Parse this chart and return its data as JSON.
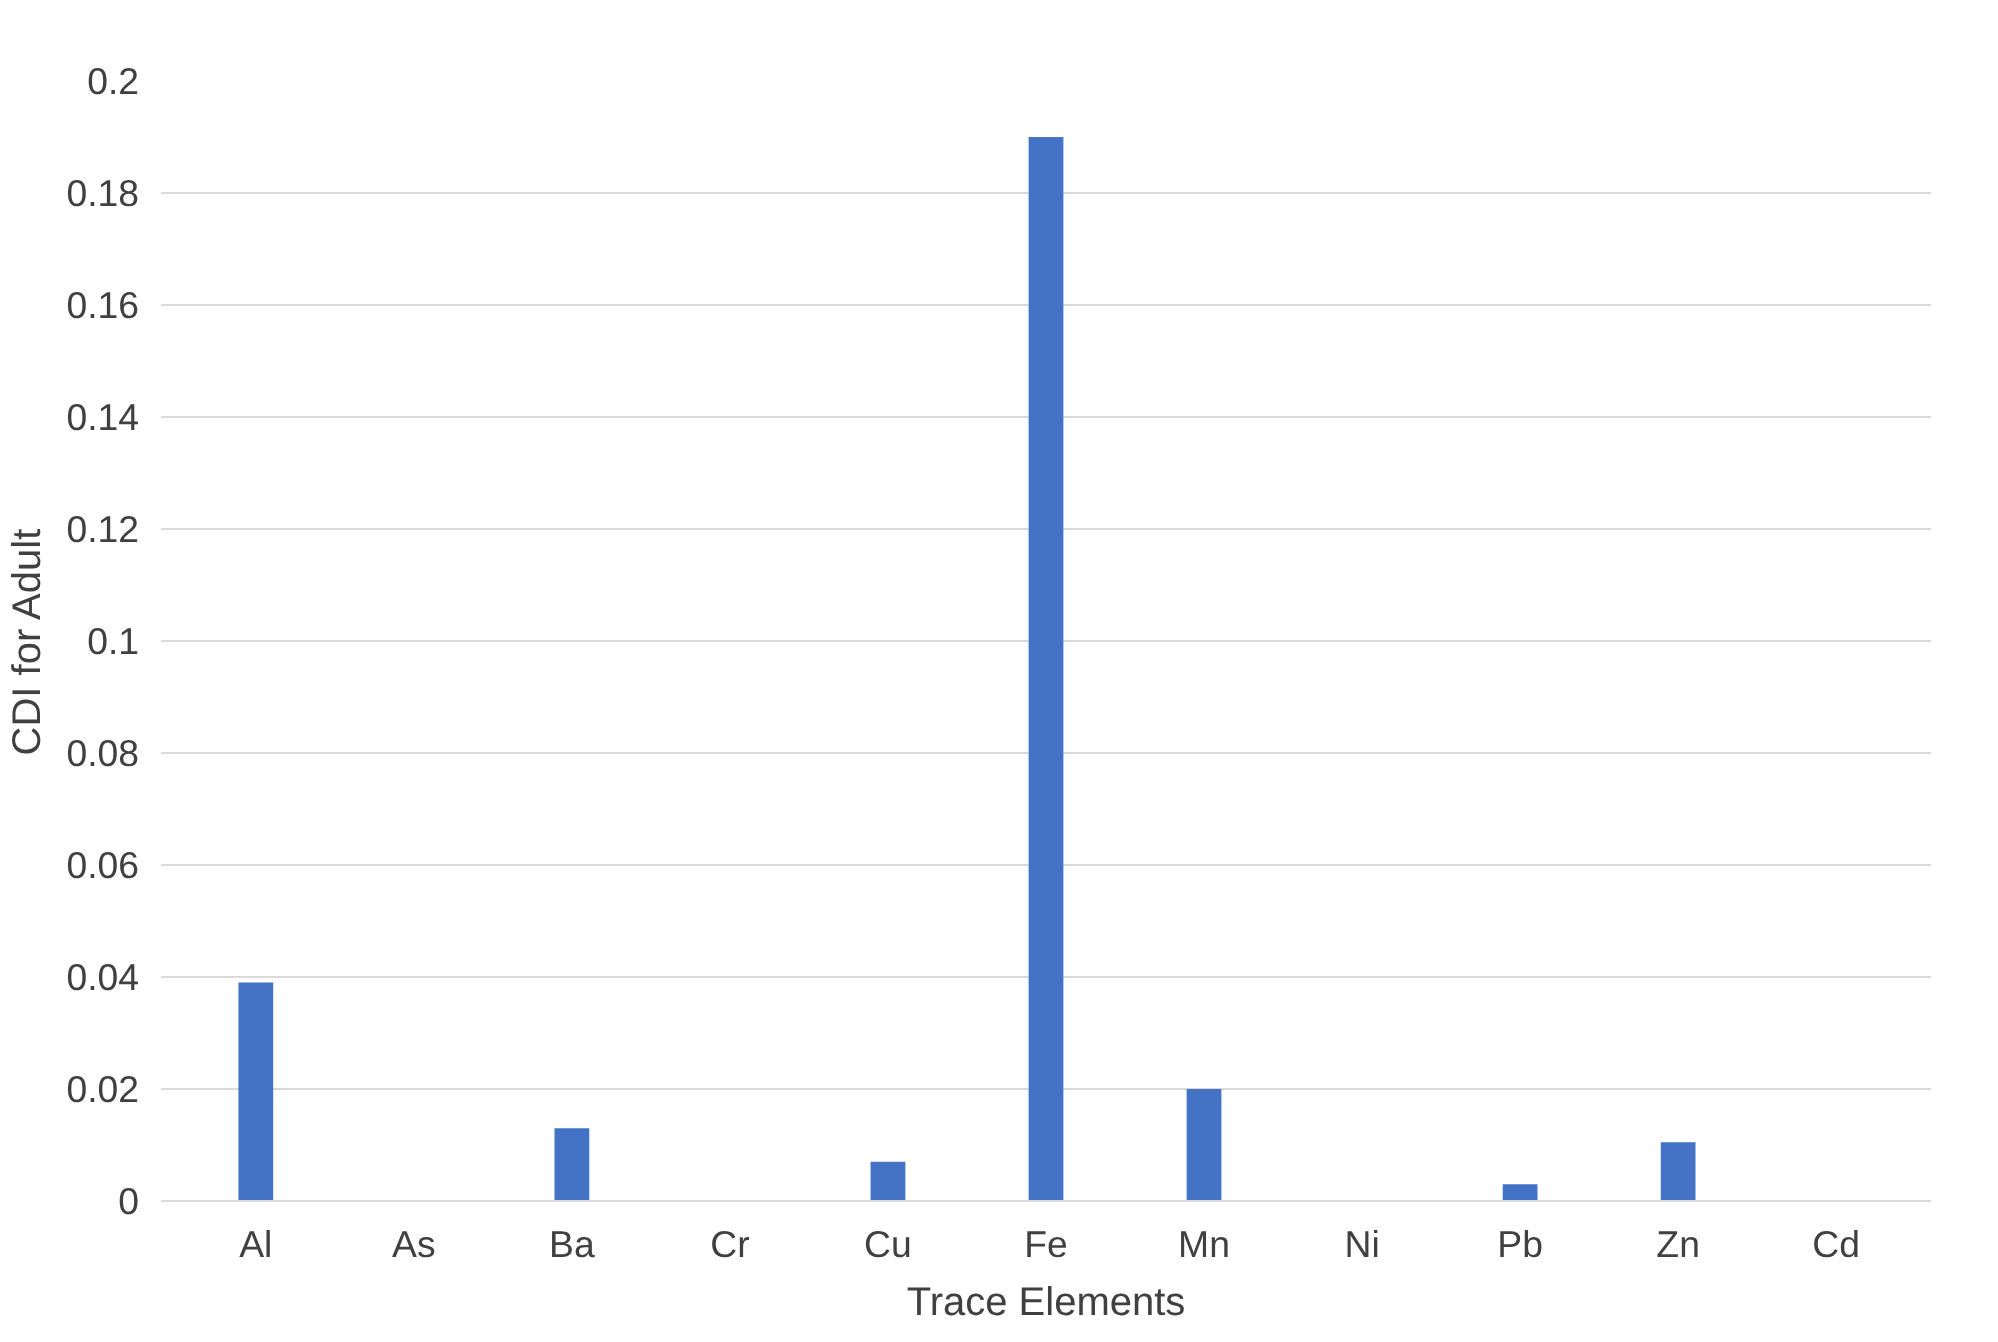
{
  "chart_data": {
    "type": "bar",
    "xlabel": "Trace Elements",
    "ylabel": "CDI for Adult",
    "categories": [
      "Al",
      "As",
      "Ba",
      "Cr",
      "Cu",
      "Fe",
      "Mn",
      "Ni",
      "Pb",
      "Zn",
      "Cd"
    ],
    "values": [
      0.039,
      0,
      0.013,
      0,
      0.007,
      0.19,
      0.02,
      0,
      0.003,
      0.0105,
      0
    ],
    "color": "#4472c4",
    "ylim": [
      0,
      0.2
    ],
    "yticks": [
      0,
      0.02,
      0.04,
      0.06,
      0.08,
      0.1,
      0.12,
      0.14,
      0.16,
      0.18,
      0.2
    ],
    "grid": "y"
  }
}
